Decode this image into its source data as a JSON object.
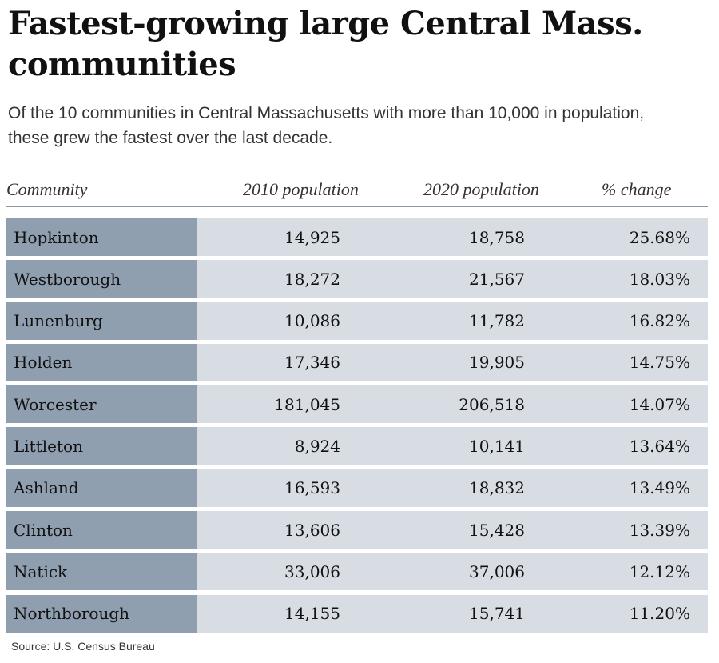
{
  "title": "Fastest-growing large Central Mass. communities",
  "subtitle": "Of the 10 communities in Central Massachusetts with more than 10,000 in population, these grew the fastest over the last decade.",
  "source": "Source: U.S. Census Bureau",
  "colors": {
    "name_cell": "#8f9faf",
    "data_cell": "#d7dde3",
    "rule": "#8a96a3"
  },
  "chart_data": {
    "type": "table",
    "title": "Fastest-growing large Central Mass. communities",
    "columns": [
      "Community",
      "2010 population",
      "2020 population",
      "% change"
    ],
    "rows": [
      {
        "community": "Hopkinton",
        "pop2010": "14,925",
        "pop2020": "18,758",
        "change": "25.68%"
      },
      {
        "community": "Westborough",
        "pop2010": "18,272",
        "pop2020": "21,567",
        "change": "18.03%"
      },
      {
        "community": "Lunenburg",
        "pop2010": "10,086",
        "pop2020": "11,782",
        "change": "16.82%"
      },
      {
        "community": "Holden",
        "pop2010": "17,346",
        "pop2020": "19,905",
        "change": "14.75%"
      },
      {
        "community": "Worcester",
        "pop2010": "181,045",
        "pop2020": "206,518",
        "change": "14.07%"
      },
      {
        "community": "Littleton",
        "pop2010": "8,924",
        "pop2020": "10,141",
        "change": "13.64%"
      },
      {
        "community": "Ashland",
        "pop2010": "16,593",
        "pop2020": "18,832",
        "change": "13.49%"
      },
      {
        "community": "Clinton",
        "pop2010": "13,606",
        "pop2020": "15,428",
        "change": "13.39%"
      },
      {
        "community": "Natick",
        "pop2010": "33,006",
        "pop2020": "37,006",
        "change": "12.12%"
      },
      {
        "community": "Northborough",
        "pop2010": "14,155",
        "pop2020": "15,741",
        "change": "11.20%"
      }
    ]
  }
}
